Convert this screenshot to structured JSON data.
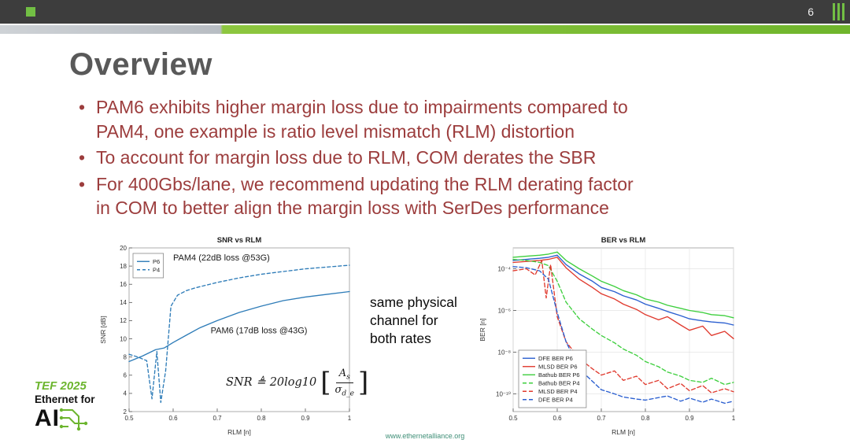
{
  "slide": {
    "page_number": "6",
    "title": "Overview",
    "bullets": [
      [
        "PAM6 exhibits higher margin loss due to impairments compared to",
        "PAM4, one example is ratio level mismatch (RLM) distortion"
      ],
      [
        "To account for margin loss due to RLM, COM derates the SBR"
      ],
      [
        "For 400Gbs/lane, we recommend updating the RLM derating factor",
        "in COM to better align the margin loss with SerDes performance"
      ]
    ],
    "center_note": "same physical\nchannel for\nboth rates",
    "footer_url": "www.ethernetalliance.org",
    "logo": {
      "tef": "TEF 2025",
      "ethernet_for": "Ethernet for",
      "ai": "AI"
    }
  },
  "formula": {
    "lhs": "SNR",
    "rel": "≜",
    "coef": "20log10",
    "num_base": "A",
    "num_sub": "s",
    "den_base": "σ",
    "den_sub": "d_e"
  },
  "colors": {
    "accent_green": "#72bf44",
    "band_gray": "#c0c5ca",
    "bullet_maroon": "#9c3d3d",
    "title_gray": "#595959",
    "snr_blue": "#2e7cb8",
    "ber_blue": "#2b5fd0",
    "ber_red": "#e03a2e",
    "ber_green": "#3ecf3e",
    "footer_teal": "#3f8f77"
  },
  "chart_data": [
    {
      "type": "line",
      "title": "SNR vs RLM",
      "xlabel": "RLM [n]",
      "ylabel": "SNR [dB]",
      "xlim": [
        0.5,
        1
      ],
      "ylim": [
        2,
        20
      ],
      "xtick_vals": [
        0.5,
        0.6,
        0.7,
        0.8,
        0.9,
        1
      ],
      "xtick_labels": [
        "0.5",
        "0.6",
        "0.7",
        "0.8",
        "0.9",
        "1"
      ],
      "ytick_vals": [
        2,
        4,
        6,
        8,
        10,
        12,
        14,
        16,
        18,
        20
      ],
      "ytick_labels": [
        "2",
        "4",
        "6",
        "8",
        "10",
        "12",
        "14",
        "16",
        "18",
        "20"
      ],
      "grid": false,
      "legend_pos": "top-left",
      "series": [
        {
          "name": "P6",
          "color": "#2e7cb8",
          "dash": null,
          "x": [
            0.5,
            0.53,
            0.56,
            0.58,
            0.6,
            0.63,
            0.66,
            0.7,
            0.75,
            0.8,
            0.85,
            0.9,
            0.95,
            1.0
          ],
          "y": [
            7.5,
            8.1,
            8.8,
            9.0,
            9.6,
            10.4,
            11.2,
            12.0,
            12.9,
            13.6,
            14.2,
            14.6,
            14.9,
            15.2
          ]
        },
        {
          "name": "P4",
          "color": "#2e7cb8",
          "dash": "4,3",
          "x": [
            0.5,
            0.52,
            0.54,
            0.552,
            0.563,
            0.572,
            0.583,
            0.595,
            0.61,
            0.63,
            0.65,
            0.7,
            0.75,
            0.8,
            0.85,
            0.9,
            0.95,
            1.0
          ],
          "y": [
            8.3,
            8.0,
            7.6,
            3.4,
            8.6,
            3.0,
            6.5,
            13.6,
            14.8,
            15.3,
            15.6,
            16.2,
            16.7,
            17.1,
            17.4,
            17.7,
            17.9,
            18.1
          ]
        }
      ],
      "annotations": [
        {
          "text": "PAM4 (22dB loss @53G)",
          "x": 0.6,
          "y": 18.6
        },
        {
          "text": "PAM6 (17dB loss @43G)",
          "x": 0.685,
          "y": 10.6
        }
      ]
    },
    {
      "type": "line",
      "title": "BER vs RLM",
      "xlabel": "RLM [n]",
      "ylabel": "BER [n]",
      "y_scale": "log10(BER)",
      "xlim": [
        0.5,
        1
      ],
      "ylim": [
        -10.85,
        -3
      ],
      "xtick_vals": [
        0.5,
        0.6,
        0.7,
        0.8,
        0.9,
        1
      ],
      "xtick_labels": [
        "0.5",
        "0.6",
        "0.7",
        "0.8",
        "0.9",
        "1"
      ],
      "ytick_vals": [
        -4,
        -6,
        -8,
        -10
      ],
      "ytick_labels": [
        "10⁻⁴",
        "10⁻⁶",
        "10⁻⁸",
        "10⁻¹⁰"
      ],
      "grid": true,
      "legend_pos": "bottom-left",
      "series": [
        {
          "name": "DFE BER P6",
          "color": "#2b5fd0",
          "dash": null,
          "x": [
            0.5,
            0.53,
            0.56,
            0.58,
            0.6,
            0.62,
            0.65,
            0.68,
            0.7,
            0.73,
            0.75,
            0.78,
            0.8,
            0.83,
            0.85,
            0.88,
            0.9,
            0.93,
            0.95,
            0.98,
            1.0
          ],
          "y": [
            -3.6,
            -3.55,
            -3.5,
            -3.45,
            -3.35,
            -3.8,
            -4.25,
            -4.6,
            -4.9,
            -5.1,
            -5.3,
            -5.5,
            -5.7,
            -5.9,
            -6.05,
            -6.25,
            -6.4,
            -6.5,
            -6.55,
            -6.6,
            -6.7
          ]
        },
        {
          "name": "MLSD BER P6",
          "color": "#e03a2e",
          "dash": null,
          "x": [
            0.5,
            0.53,
            0.56,
            0.58,
            0.6,
            0.62,
            0.65,
            0.68,
            0.7,
            0.73,
            0.75,
            0.78,
            0.8,
            0.83,
            0.85,
            0.88,
            0.9,
            0.93,
            0.95,
            0.98,
            1.0
          ],
          "y": [
            -3.7,
            -3.65,
            -3.6,
            -3.55,
            -3.45,
            -3.95,
            -4.5,
            -4.9,
            -5.2,
            -5.45,
            -5.7,
            -5.95,
            -6.2,
            -6.45,
            -6.3,
            -6.7,
            -6.95,
            -6.75,
            -7.2,
            -7.0,
            -7.35
          ]
        },
        {
          "name": "Bathub BER P6",
          "color": "#3ecf3e",
          "dash": null,
          "x": [
            0.5,
            0.53,
            0.56,
            0.58,
            0.6,
            0.62,
            0.65,
            0.68,
            0.7,
            0.73,
            0.75,
            0.78,
            0.8,
            0.83,
            0.85,
            0.88,
            0.9,
            0.93,
            0.95,
            0.98,
            1.0
          ],
          "y": [
            -3.45,
            -3.4,
            -3.35,
            -3.3,
            -3.2,
            -3.6,
            -4.0,
            -4.35,
            -4.6,
            -4.85,
            -5.05,
            -5.25,
            -5.45,
            -5.6,
            -5.75,
            -5.9,
            -6.0,
            -6.1,
            -6.2,
            -6.25,
            -6.35
          ]
        },
        {
          "name": "Bathub BER P4",
          "color": "#3ecf3e",
          "dash": "5,3",
          "x": [
            0.5,
            0.53,
            0.56,
            0.58,
            0.6,
            0.62,
            0.65,
            0.68,
            0.7,
            0.73,
            0.75,
            0.78,
            0.8,
            0.83,
            0.85,
            0.88,
            0.9,
            0.93,
            0.95,
            0.98,
            1.0
          ],
          "y": [
            -3.55,
            -3.6,
            -3.7,
            -3.85,
            -4.6,
            -5.6,
            -6.4,
            -6.9,
            -7.2,
            -7.55,
            -7.85,
            -8.15,
            -8.45,
            -8.7,
            -8.95,
            -9.15,
            -9.35,
            -9.45,
            -9.25,
            -9.55,
            -9.45
          ]
        },
        {
          "name": "MLSD BER P4",
          "color": "#e03a2e",
          "dash": "5,3",
          "x": [
            0.5,
            0.53,
            0.55,
            0.565,
            0.575,
            0.585,
            0.6,
            0.62,
            0.65,
            0.68,
            0.7,
            0.73,
            0.75,
            0.78,
            0.8,
            0.83,
            0.85,
            0.88,
            0.9,
            0.93,
            0.95,
            0.98,
            1.0
          ],
          "y": [
            -4.1,
            -4.0,
            -4.3,
            -3.6,
            -5.4,
            -3.8,
            -6.3,
            -7.5,
            -8.3,
            -8.8,
            -9.1,
            -8.9,
            -9.35,
            -9.15,
            -9.55,
            -9.35,
            -9.75,
            -9.5,
            -9.85,
            -9.6,
            -9.95,
            -9.75,
            -9.9
          ]
        },
        {
          "name": "DFE BER P4",
          "color": "#2b5fd0",
          "dash": "5,3",
          "x": [
            0.5,
            0.53,
            0.56,
            0.58,
            0.6,
            0.62,
            0.65,
            0.68,
            0.7,
            0.73,
            0.75,
            0.78,
            0.8,
            0.85,
            0.88,
            0.9,
            0.93,
            0.95,
            0.98,
            1.0
          ],
          "y": [
            -3.9,
            -3.95,
            -4.1,
            -4.5,
            -6.1,
            -7.5,
            -8.8,
            -9.4,
            -9.8,
            -10.0,
            -10.15,
            -10.25,
            -10.3,
            -10.1,
            -10.35,
            -10.2,
            -10.4,
            -10.25,
            -10.45,
            -10.35
          ]
        }
      ],
      "annotations": []
    }
  ]
}
